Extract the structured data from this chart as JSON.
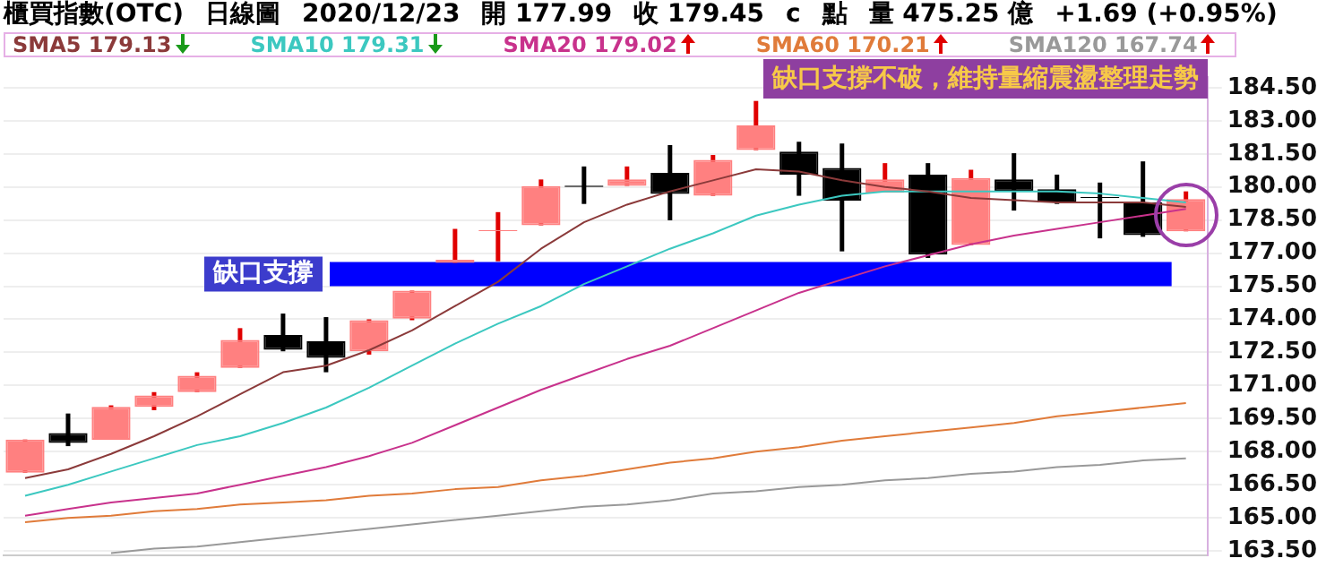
{
  "chart_data": {
    "type": "candlestick",
    "title": "櫃買指數(OTC)",
    "subtitle": "日線圖",
    "annotations": [
      "2020/12/23",
      "開 177.99",
      "收 179.45",
      "c",
      "點",
      "量 475.25 億",
      "+1.69 (+0.95%)",
      "缺口支撐不破，維持量縮震盪整理走勢"
    ],
    "categories": [
      null,
      null,
      null,
      null,
      null,
      null,
      null,
      null,
      null,
      null,
      null,
      null,
      null,
      null,
      null,
      null,
      null,
      null,
      null,
      null,
      null,
      null,
      null,
      null,
      null,
      null,
      null,
      null
    ],
    "ohlc": [
      [
        167.05,
        168.55,
        167.05,
        168.55
      ],
      [
        168.84,
        169.73,
        168.25,
        168.4
      ],
      [
        168.54,
        170.1,
        168.54,
        170.03
      ],
      [
        170.03,
        170.7,
        169.88,
        170.55
      ],
      [
        170.7,
        171.6,
        170.7,
        171.44
      ],
      [
        171.8,
        173.6,
        171.8,
        173.07
      ],
      [
        173.29,
        174.26,
        172.55,
        172.62
      ],
      [
        173.0,
        174.1,
        171.6,
        172.25
      ],
      [
        172.55,
        174.0,
        172.4,
        173.96
      ],
      [
        174.03,
        175.3,
        173.96,
        175.3
      ],
      [
        176.56,
        178.1,
        176.56,
        176.7
      ],
      [
        178.0,
        178.86,
        176.63,
        178.05
      ],
      [
        178.26,
        180.34,
        178.26,
        180.04
      ],
      [
        180.06,
        180.93,
        179.23,
        180.0
      ],
      [
        180.05,
        180.93,
        180.05,
        180.34
      ],
      [
        180.64,
        181.9,
        178.49,
        179.68
      ],
      [
        179.6,
        181.45,
        179.6,
        181.23
      ],
      [
        181.67,
        183.9,
        181.67,
        182.79
      ],
      [
        181.6,
        182.05,
        179.6,
        180.56
      ],
      [
        180.86,
        181.97,
        177.08,
        179.38
      ],
      [
        179.75,
        181.08,
        179.75,
        180.34
      ],
      [
        180.56,
        181.08,
        176.78,
        176.93
      ],
      [
        177.37,
        180.78,
        177.37,
        180.41
      ],
      [
        180.34,
        181.53,
        178.93,
        179.82
      ],
      [
        179.9,
        180.56,
        179.23,
        179.3
      ],
      [
        179.54,
        180.2,
        177.67,
        179.5
      ],
      [
        179.3,
        181.16,
        177.74,
        177.82
      ],
      [
        177.99,
        179.8,
        177.99,
        179.45
      ]
    ],
    "colors": [
      "#ff8080",
      "#000000",
      "#ff8080",
      "#ff8080",
      "#ff8080",
      "#ff8080",
      "#000000",
      "#000000",
      "#ff8080",
      "#ff8080",
      "#ff8080",
      "#ff8080",
      "#ff8080",
      "#000000",
      "#ff8080",
      "#000000",
      "#ff8080",
      "#ff8080",
      "#000000",
      "#000000",
      "#ff8080",
      "#000000",
      "#ff8080",
      "#000000",
      "#000000",
      "#000000",
      "#000000",
      "#ff8080"
    ],
    "series": [
      {
        "name": "SMA5 179.13",
        "type": "line",
        "color": "#8b3a3a",
        "values": [
          166.8,
          167.2,
          167.9,
          168.7,
          169.6,
          170.6,
          171.6,
          171.9,
          172.6,
          173.5,
          174.6,
          175.7,
          177.2,
          178.4,
          179.2,
          179.8,
          180.3,
          180.8,
          180.7,
          180.3,
          180.0,
          179.8,
          179.5,
          179.4,
          179.3,
          179.3,
          179.3,
          179.1
        ]
      },
      {
        "name": "SMA10 179.31",
        "type": "line",
        "color": "#3cc8c0",
        "values": [
          166.0,
          166.5,
          167.1,
          167.7,
          168.3,
          168.7,
          169.3,
          170.0,
          170.9,
          171.9,
          172.9,
          173.8,
          174.6,
          175.6,
          176.4,
          177.2,
          177.9,
          178.7,
          179.2,
          179.6,
          179.8,
          179.8,
          179.8,
          179.8,
          179.8,
          179.7,
          179.5,
          179.3
        ]
      },
      {
        "name": "SMA20 179.02",
        "type": "line",
        "color": "#c8328c",
        "values": [
          165.1,
          165.4,
          165.7,
          165.9,
          166.1,
          166.5,
          166.9,
          167.3,
          167.8,
          168.4,
          169.2,
          170.0,
          170.8,
          171.5,
          172.2,
          172.8,
          173.6,
          174.4,
          175.2,
          175.8,
          176.4,
          176.9,
          177.4,
          177.8,
          178.1,
          178.4,
          178.7,
          179.0
        ]
      },
      {
        "name": "SMA60 170.21",
        "type": "line",
        "color": "#e07b3a",
        "values": [
          164.8,
          165.0,
          165.1,
          165.3,
          165.4,
          165.6,
          165.7,
          165.8,
          166.0,
          166.1,
          166.3,
          166.4,
          166.7,
          166.9,
          167.2,
          167.5,
          167.7,
          168.0,
          168.2,
          168.5,
          168.7,
          168.9,
          169.1,
          169.3,
          169.6,
          169.8,
          170.0,
          170.2
        ]
      },
      {
        "name": "SMA120 167.74",
        "type": "line",
        "color": "#999999",
        "values": [
          null,
          null,
          163.4,
          163.6,
          163.7,
          163.9,
          164.1,
          164.3,
          164.5,
          164.7,
          164.9,
          165.1,
          165.3,
          165.5,
          165.6,
          165.8,
          166.1,
          166.2,
          166.4,
          166.5,
          166.7,
          166.8,
          167.0,
          167.1,
          167.3,
          167.4,
          167.6,
          167.7
        ]
      }
    ],
    "bands": [
      {
        "axis": "y",
        "from": 175.5,
        "to": 176.6,
        "label": "缺口支撐",
        "color": "#0000ff"
      }
    ],
    "ylim": [
      163.3,
      185
    ],
    "yticks": [
      {
        "value": 163.5,
        "label": "163.50"
      },
      {
        "value": 165,
        "label": "165.00"
      },
      {
        "value": 166.5,
        "label": "166.50"
      },
      {
        "value": 168,
        "label": "168.00"
      },
      {
        "value": 169.5,
        "label": "169.50"
      },
      {
        "value": 171,
        "label": "171.00"
      },
      {
        "value": 172.5,
        "label": "172.50"
      },
      {
        "value": 174,
        "label": "174.00"
      },
      {
        "value": 175.5,
        "label": "175.50"
      },
      {
        "value": 177,
        "label": "177.00"
      },
      {
        "value": 178.5,
        "label": "178.50"
      },
      {
        "value": 180,
        "label": "180.00"
      },
      {
        "value": 181.5,
        "label": "181.50"
      },
      {
        "value": 183,
        "label": "183.00"
      },
      {
        "value": 184.5,
        "label": "184.50"
      }
    ],
    "grid": "y",
    "legend": "top",
    "tick_labels": "y"
  }
}
